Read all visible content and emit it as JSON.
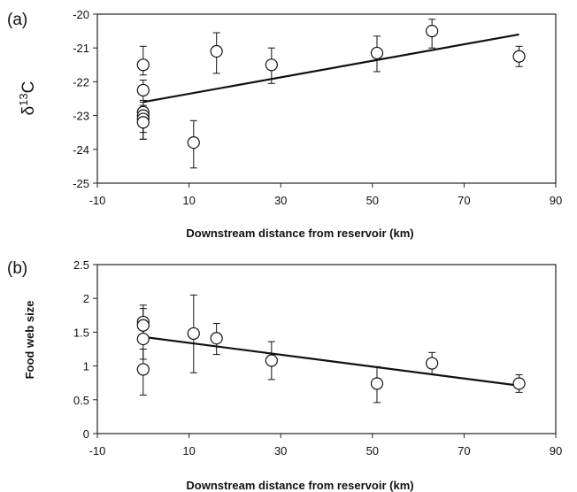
{
  "chart_data": [
    {
      "panel_label": "(a)",
      "type": "scatter",
      "xlabel": "Downstream distance from reservoir (km)",
      "ylabel": "δ13C",
      "ylabel_parts": [
        "δ",
        "13",
        "C"
      ],
      "xlim": [
        -10,
        90
      ],
      "ylim": [
        -25,
        -20
      ],
      "x_ticks": [
        "-10",
        "10",
        "30",
        "50",
        "70",
        "90"
      ],
      "y_ticks": [
        "-20",
        "-21",
        "-22",
        "-23",
        "-24",
        "-25"
      ],
      "points": [
        {
          "x": 0,
          "y": -21.5,
          "err_high": 0.55,
          "err_low": 0.3
        },
        {
          "x": 0,
          "y": -22.25,
          "err_high": 0.3,
          "err_low": 0.3
        },
        {
          "x": 0,
          "y": -22.9,
          "err_high": 0.3,
          "err_low": 0.4
        },
        {
          "x": 0,
          "y": -23.0,
          "err_high": 0.3,
          "err_low": 0.5
        },
        {
          "x": 0,
          "y": -23.1,
          "err_high": 0.3,
          "err_low": 0.6
        },
        {
          "x": 0,
          "y": -23.2,
          "err_high": 0.3,
          "err_low": 0.5
        },
        {
          "x": 11,
          "y": -23.8,
          "err_high": 0.65,
          "err_low": 0.75
        },
        {
          "x": 16,
          "y": -21.1,
          "err_high": 0.55,
          "err_low": 0.65
        },
        {
          "x": 28,
          "y": -21.5,
          "err_high": 0.5,
          "err_low": 0.55
        },
        {
          "x": 51,
          "y": -21.15,
          "err_high": 0.5,
          "err_low": 0.55
        },
        {
          "x": 63,
          "y": -20.5,
          "err_high": 0.35,
          "err_low": 0.5
        },
        {
          "x": 82,
          "y": -21.25,
          "err_high": 0.3,
          "err_low": 0.3
        }
      ],
      "trendline": {
        "x": [
          0,
          82
        ],
        "y": [
          -22.6,
          -20.6
        ]
      }
    },
    {
      "panel_label": "(b)",
      "type": "scatter",
      "xlabel": "Downstream distance from reservoir (km)",
      "ylabel": "Food web size",
      "xlim": [
        -10,
        90
      ],
      "ylim": [
        0,
        2.5
      ],
      "x_ticks": [
        "-10",
        "10",
        "30",
        "50",
        "70",
        "90"
      ],
      "y_ticks": [
        "2.5",
        "2",
        "1.5",
        "1",
        "0.5",
        "0"
      ],
      "points": [
        {
          "x": 0,
          "y": 1.65,
          "err_high": 0.25,
          "err_low": 0.2
        },
        {
          "x": 0,
          "y": 1.6,
          "err_high": 0.25,
          "err_low": 0.2
        },
        {
          "x": 0,
          "y": 1.4,
          "err_high": 0.2,
          "err_low": 0.3
        },
        {
          "x": 0,
          "y": 0.95,
          "err_high": 0.3,
          "err_low": 0.38
        },
        {
          "x": 11,
          "y": 1.48,
          "err_high": 0.57,
          "err_low": 0.58
        },
        {
          "x": 16,
          "y": 1.41,
          "err_high": 0.22,
          "err_low": 0.24
        },
        {
          "x": 28,
          "y": 1.08,
          "err_high": 0.28,
          "err_low": 0.28
        },
        {
          "x": 51,
          "y": 0.74,
          "err_high": 0.25,
          "err_low": 0.28
        },
        {
          "x": 63,
          "y": 1.04,
          "err_high": 0.16,
          "err_low": 0.16
        },
        {
          "x": 82,
          "y": 0.74,
          "err_high": 0.13,
          "err_low": 0.13
        }
      ],
      "trendline": {
        "x": [
          0,
          82
        ],
        "y": [
          1.43,
          0.71
        ]
      }
    }
  ]
}
